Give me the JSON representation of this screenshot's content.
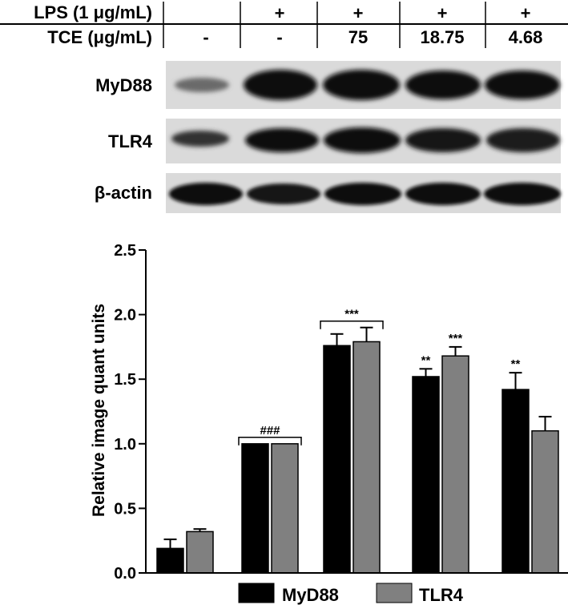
{
  "header_table": {
    "rows": [
      {
        "label": "LPS (1 μg/mL)",
        "values": [
          "",
          "+",
          "+",
          "+",
          "+"
        ]
      },
      {
        "label": "TCE (μg/mL)",
        "values": [
          "-",
          "-",
          "75",
          "18.75",
          "4.68"
        ]
      }
    ]
  },
  "blot_labels": [
    "MyD88",
    "TLR4",
    "β-actin"
  ],
  "colors": {
    "MyD88": "#000000",
    "TLR4": "#808080"
  },
  "chart_data": {
    "type": "bar",
    "categories": [
      "-/-",
      "+/-",
      "+/75",
      "+/18.75",
      "+/4.68"
    ],
    "series": [
      {
        "name": "MyD88",
        "values": [
          0.19,
          1.0,
          1.76,
          1.52,
          1.42
        ],
        "errors": [
          0.07,
          0.0,
          0.09,
          0.06,
          0.13
        ]
      },
      {
        "name": "TLR4",
        "values": [
          0.32,
          1.0,
          1.79,
          1.68,
          1.1
        ],
        "errors": [
          0.02,
          0.0,
          0.11,
          0.07,
          0.11
        ]
      }
    ],
    "ylabel": "Relative image quant units",
    "ylim": [
      0,
      2.5
    ],
    "yticks": [
      "0.0",
      "0.5",
      "1.0",
      "1.5",
      "2.0",
      "2.5"
    ],
    "annotations": [
      {
        "text": "###",
        "group": 1,
        "bracket": true
      },
      {
        "text": "***",
        "group": 2,
        "bracket": true
      },
      {
        "text": "**",
        "group": 3,
        "series": 0
      },
      {
        "text": "***",
        "group": 3,
        "series": 1
      },
      {
        "text": "**",
        "group": 4,
        "series": 0
      }
    ],
    "legend": {
      "position": "bottom",
      "entries": [
        "MyD88",
        "TLR4"
      ]
    }
  }
}
